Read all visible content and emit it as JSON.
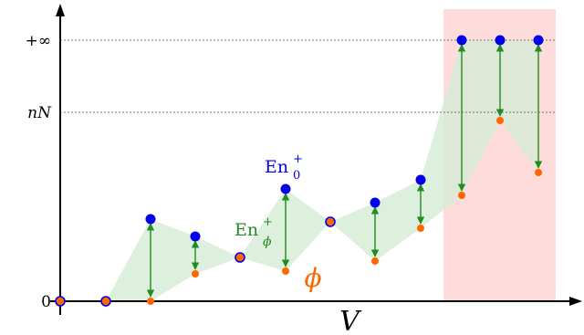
{
  "labels": {
    "y_inf": "+∞",
    "y_nN": "nN",
    "y_zero": "0",
    "x_axis": "V",
    "phi": "ϕ",
    "en0_base": "En",
    "en0_sup": "+",
    "en0_sub": "0",
    "enphi_base": "En",
    "enphi_sup": "+",
    "enphi_sub": "ϕ"
  },
  "colors": {
    "blue": "#0000ee",
    "orange": "#ff6600",
    "green": "#228b22",
    "band": "#d4ecd4",
    "highlight": "#ffdcdc",
    "axis": "#000000",
    "dotted": "#777777"
  }
}
